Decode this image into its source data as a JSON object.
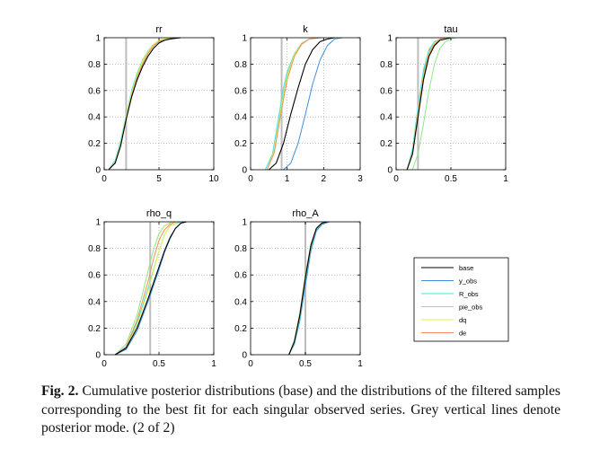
{
  "caption": {
    "label": "Fig. 2.",
    "text": "Cumulative posterior distributions (base) and the distributions of the filtered samples corresponding to the best fit for each singular observed series. Grey vertical lines denote posterior mode. (2 of 2)"
  },
  "colors": {
    "base": "#000000",
    "y_obs": "#3d8fe0",
    "R_obs": "#44e3e3",
    "pie_obs": "#8fe68a",
    "dq": "#eeee44",
    "de": "#f0905a",
    "mode_line": "#bdbdbd"
  },
  "legend": {
    "entries": [
      "base",
      "y_obs",
      "R_obs",
      "pie_obs",
      "dq",
      "de"
    ]
  },
  "chart_data": [
    {
      "type": "line",
      "title": "rr",
      "xlim": [
        0,
        10
      ],
      "ylim": [
        0,
        1
      ],
      "xticks": [
        0,
        5,
        10
      ],
      "yticks": [
        0,
        0.2,
        0.4,
        0.6,
        0.8,
        1
      ],
      "mode": 2.0,
      "series": [
        {
          "name": "base",
          "x": [
            0.4,
            1.0,
            1.5,
            2.0,
            2.5,
            3.0,
            3.5,
            4.0,
            4.5,
            5.0,
            5.5,
            6.0,
            7.0
          ],
          "y": [
            0,
            0.05,
            0.18,
            0.38,
            0.55,
            0.68,
            0.78,
            0.86,
            0.92,
            0.96,
            0.98,
            0.99,
            1
          ]
        },
        {
          "name": "y_obs",
          "x": [
            0.4,
            1.0,
            1.5,
            2.0,
            2.5,
            3.0,
            3.5,
            4.0,
            4.5,
            5.0,
            5.5,
            6.5
          ],
          "y": [
            0,
            0.06,
            0.2,
            0.4,
            0.57,
            0.7,
            0.8,
            0.88,
            0.94,
            0.97,
            0.99,
            1
          ]
        },
        {
          "name": "R_obs",
          "x": [
            0.4,
            1.0,
            1.5,
            2.0,
            2.5,
            3.0,
            3.5,
            4.0,
            4.5,
            5.0,
            6.0
          ],
          "y": [
            0,
            0.07,
            0.22,
            0.41,
            0.6,
            0.73,
            0.83,
            0.9,
            0.95,
            0.98,
            1
          ]
        },
        {
          "name": "pie_obs",
          "x": [
            0.4,
            1.0,
            1.5,
            2.0,
            2.5,
            3.0,
            3.5,
            4.0,
            4.5,
            5.0,
            6.0
          ],
          "y": [
            0,
            0.06,
            0.2,
            0.39,
            0.58,
            0.72,
            0.83,
            0.9,
            0.95,
            0.98,
            1
          ]
        },
        {
          "name": "dq",
          "x": [
            0.4,
            1.0,
            1.5,
            2.0,
            2.5,
            3.0,
            3.5,
            4.0,
            4.5,
            5.0,
            6.0
          ],
          "y": [
            0,
            0.05,
            0.19,
            0.4,
            0.58,
            0.71,
            0.82,
            0.89,
            0.95,
            0.98,
            1
          ]
        },
        {
          "name": "de",
          "x": [
            0.4,
            1.0,
            1.5,
            2.0,
            2.5,
            3.0,
            3.5,
            4.0,
            4.5,
            5.0,
            6.5
          ],
          "y": [
            0,
            0.05,
            0.18,
            0.38,
            0.56,
            0.7,
            0.8,
            0.88,
            0.94,
            0.97,
            1
          ]
        }
      ]
    },
    {
      "type": "line",
      "title": "k",
      "xlim": [
        0,
        3
      ],
      "ylim": [
        0,
        1
      ],
      "xticks": [
        0,
        1,
        2,
        3
      ],
      "yticks": [
        0,
        0.2,
        0.4,
        0.6,
        0.8,
        1
      ],
      "mode": 0.85,
      "series": [
        {
          "name": "base",
          "x": [
            0.5,
            0.7,
            0.9,
            1.1,
            1.3,
            1.5,
            1.7,
            1.9,
            2.1,
            2.3
          ],
          "y": [
            0,
            0.05,
            0.2,
            0.42,
            0.62,
            0.8,
            0.91,
            0.97,
            0.99,
            1
          ]
        },
        {
          "name": "y_obs",
          "x": [
            0.9,
            1.1,
            1.3,
            1.5,
            1.7,
            1.9,
            2.1,
            2.3,
            2.5
          ],
          "y": [
            0,
            0.05,
            0.2,
            0.42,
            0.65,
            0.83,
            0.94,
            0.99,
            1
          ]
        },
        {
          "name": "R_obs",
          "x": [
            0.4,
            0.6,
            0.8,
            0.9,
            1.0,
            1.2,
            1.4,
            1.6,
            1.9
          ],
          "y": [
            0,
            0.12,
            0.45,
            0.62,
            0.74,
            0.88,
            0.95,
            0.99,
            1
          ]
        },
        {
          "name": "pie_obs",
          "x": [
            0.45,
            0.65,
            0.85,
            1.0,
            1.2,
            1.4,
            1.6,
            1.8
          ],
          "y": [
            0,
            0.15,
            0.5,
            0.72,
            0.88,
            0.96,
            0.99,
            1
          ]
        },
        {
          "name": "dq",
          "x": [
            0.45,
            0.65,
            0.85,
            1.0,
            1.2,
            1.4,
            1.6,
            1.8
          ],
          "y": [
            0,
            0.14,
            0.48,
            0.7,
            0.87,
            0.95,
            0.99,
            1
          ]
        },
        {
          "name": "de",
          "x": [
            0.45,
            0.65,
            0.85,
            1.0,
            1.2,
            1.4,
            1.6,
            1.9
          ],
          "y": [
            0,
            0.13,
            0.46,
            0.68,
            0.86,
            0.95,
            0.99,
            1
          ]
        }
      ]
    },
    {
      "type": "line",
      "title": "tau",
      "xlim": [
        0,
        1
      ],
      "ylim": [
        0,
        1
      ],
      "xticks": [
        0,
        0.5,
        1
      ],
      "yticks": [
        0,
        0.2,
        0.4,
        0.6,
        0.8,
        1
      ],
      "mode": 0.2,
      "series": [
        {
          "name": "base",
          "x": [
            0.1,
            0.15,
            0.2,
            0.25,
            0.3,
            0.35,
            0.4,
            0.45,
            0.5
          ],
          "y": [
            0,
            0.12,
            0.4,
            0.68,
            0.86,
            0.94,
            0.98,
            0.99,
            1
          ]
        },
        {
          "name": "y_obs",
          "x": [
            0.1,
            0.15,
            0.2,
            0.25,
            0.3,
            0.35,
            0.4,
            0.45
          ],
          "y": [
            0,
            0.14,
            0.45,
            0.74,
            0.9,
            0.96,
            0.99,
            1
          ]
        },
        {
          "name": "R_obs",
          "x": [
            0.1,
            0.15,
            0.2,
            0.25,
            0.3,
            0.35,
            0.4,
            0.45
          ],
          "y": [
            0,
            0.16,
            0.48,
            0.76,
            0.91,
            0.97,
            0.99,
            1
          ]
        },
        {
          "name": "pie_obs",
          "x": [
            0.15,
            0.2,
            0.25,
            0.3,
            0.35,
            0.4,
            0.45,
            0.5,
            0.55
          ],
          "y": [
            0,
            0.12,
            0.35,
            0.6,
            0.8,
            0.92,
            0.97,
            0.99,
            1
          ]
        },
        {
          "name": "dq",
          "x": [
            0.1,
            0.15,
            0.2,
            0.25,
            0.3,
            0.35,
            0.4,
            0.45
          ],
          "y": [
            0,
            0.13,
            0.44,
            0.72,
            0.89,
            0.96,
            0.99,
            1
          ]
        },
        {
          "name": "de",
          "x": [
            0.1,
            0.15,
            0.2,
            0.25,
            0.3,
            0.35,
            0.4,
            0.45
          ],
          "y": [
            0,
            0.12,
            0.42,
            0.7,
            0.88,
            0.95,
            0.99,
            1
          ]
        }
      ]
    },
    {
      "type": "line",
      "title": "rho_q",
      "xlim": [
        0,
        1
      ],
      "ylim": [
        0,
        1
      ],
      "xticks": [
        0,
        0.5,
        1
      ],
      "yticks": [
        0,
        0.2,
        0.4,
        0.6,
        0.8,
        1
      ],
      "mode": 0.42,
      "series": [
        {
          "name": "base",
          "x": [
            0.1,
            0.2,
            0.3,
            0.4,
            0.5,
            0.55,
            0.6,
            0.65,
            0.7,
            0.75
          ],
          "y": [
            0,
            0.05,
            0.2,
            0.42,
            0.66,
            0.78,
            0.88,
            0.95,
            0.99,
            1
          ]
        },
        {
          "name": "y_obs",
          "x": [
            0.1,
            0.2,
            0.3,
            0.4,
            0.5,
            0.55,
            0.6,
            0.65,
            0.7,
            0.75
          ],
          "y": [
            0,
            0.04,
            0.18,
            0.4,
            0.64,
            0.77,
            0.87,
            0.95,
            0.99,
            1
          ]
        },
        {
          "name": "R_obs",
          "x": [
            0.1,
            0.2,
            0.3,
            0.4,
            0.45,
            0.5,
            0.55,
            0.6,
            0.7
          ],
          "y": [
            0,
            0.06,
            0.24,
            0.5,
            0.64,
            0.78,
            0.9,
            0.97,
            1
          ]
        },
        {
          "name": "pie_obs",
          "x": [
            0.1,
            0.2,
            0.3,
            0.35,
            0.4,
            0.45,
            0.5,
            0.55,
            0.62
          ],
          "y": [
            0,
            0.08,
            0.3,
            0.46,
            0.63,
            0.79,
            0.91,
            0.97,
            1
          ]
        },
        {
          "name": "dq",
          "x": [
            0.1,
            0.2,
            0.3,
            0.4,
            0.45,
            0.5,
            0.55,
            0.6,
            0.68
          ],
          "y": [
            0,
            0.05,
            0.22,
            0.48,
            0.63,
            0.78,
            0.9,
            0.97,
            1
          ]
        },
        {
          "name": "de",
          "x": [
            0.1,
            0.2,
            0.3,
            0.4,
            0.45,
            0.5,
            0.55,
            0.6,
            0.65
          ],
          "y": [
            0,
            0.06,
            0.26,
            0.55,
            0.72,
            0.86,
            0.94,
            0.98,
            1
          ]
        }
      ]
    },
    {
      "type": "line",
      "title": "rho_A",
      "xlim": [
        0,
        1
      ],
      "ylim": [
        0,
        1
      ],
      "xticks": [
        0,
        0.5,
        1
      ],
      "yticks": [
        0,
        0.2,
        0.4,
        0.6,
        0.8,
        1
      ],
      "mode": 0.5,
      "series": [
        {
          "name": "base",
          "x": [
            0.35,
            0.4,
            0.45,
            0.5,
            0.55,
            0.6,
            0.65,
            0.7
          ],
          "y": [
            0,
            0.1,
            0.3,
            0.58,
            0.82,
            0.95,
            0.99,
            1
          ]
        },
        {
          "name": "y_obs",
          "x": [
            0.35,
            0.4,
            0.45,
            0.5,
            0.55,
            0.6,
            0.65,
            0.72
          ],
          "y": [
            0,
            0.08,
            0.26,
            0.52,
            0.78,
            0.93,
            0.98,
            1
          ]
        },
        {
          "name": "R_obs",
          "x": [
            0.35,
            0.4,
            0.45,
            0.5,
            0.55,
            0.6,
            0.65,
            0.7
          ],
          "y": [
            0,
            0.09,
            0.28,
            0.56,
            0.8,
            0.94,
            0.99,
            1
          ]
        },
        {
          "name": "pie_obs",
          "x": [
            0.35,
            0.4,
            0.45,
            0.5,
            0.55,
            0.6,
            0.65,
            0.7
          ],
          "y": [
            0,
            0.11,
            0.32,
            0.6,
            0.83,
            0.95,
            0.99,
            1
          ]
        },
        {
          "name": "dq",
          "x": [
            0.35,
            0.4,
            0.45,
            0.5,
            0.55,
            0.6,
            0.65,
            0.7
          ],
          "y": [
            0,
            0.1,
            0.3,
            0.58,
            0.82,
            0.95,
            0.99,
            1
          ]
        },
        {
          "name": "de",
          "x": [
            0.35,
            0.4,
            0.45,
            0.5,
            0.55,
            0.6,
            0.65,
            0.7
          ],
          "y": [
            0,
            0.1,
            0.31,
            0.59,
            0.83,
            0.95,
            0.99,
            1
          ]
        }
      ]
    }
  ]
}
